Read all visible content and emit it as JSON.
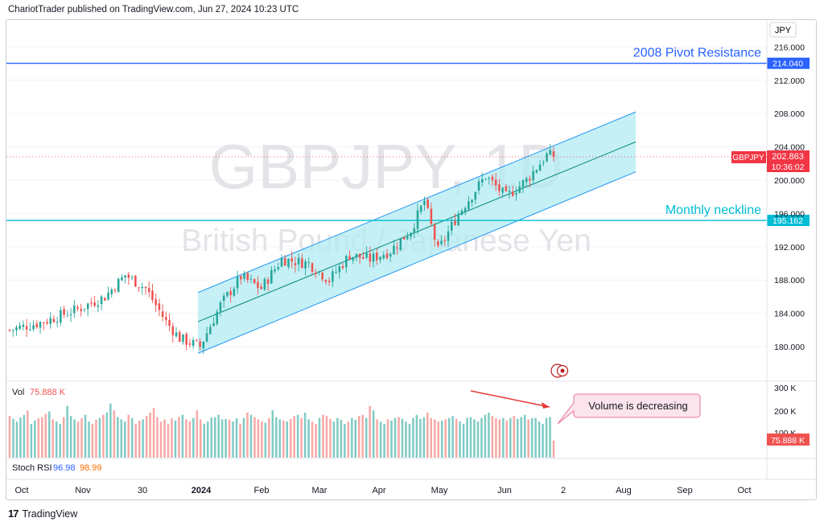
{
  "header": {
    "publish_line": "ChariotTrader published on TradingView.com, Jun 27, 2024 10:23 UTC"
  },
  "watermark": {
    "symbol_timeframe": "GBPJPY, 1D",
    "instrument_name": "British Pound / Japanese Yen"
  },
  "price_axis": {
    "currency": "JPY",
    "ticks": [
      "216.000",
      "212.000",
      "208.000",
      "204.000",
      "200.000",
      "196.000",
      "192.000",
      "188.000",
      "184.000",
      "180.000"
    ]
  },
  "time_axis": {
    "labels": [
      "Oct",
      "Nov",
      "30",
      "2024",
      "Feb",
      "Mar",
      "Apr",
      "May",
      "Jun",
      "2",
      "Aug",
      "Sep",
      "Oct"
    ]
  },
  "levels": {
    "pivot": {
      "label": "2008 Pivot Resistance",
      "value": "214.040",
      "color": "#2962ff"
    },
    "neckline": {
      "label": "Monthly neckline",
      "value": "195.162",
      "color": "#00bcd4"
    }
  },
  "last_price": {
    "symbol": "GBPJPY",
    "price": "202.863",
    "countdown": "10:36:02",
    "color": "#f23645"
  },
  "volume_pane": {
    "label": "Vol",
    "value": "75.888 K",
    "axis_ticks": [
      "300 K",
      "200 K",
      "100 K"
    ],
    "last_tag": "75.888 K",
    "annotation": "Volume is decreasing"
  },
  "stoch_rsi": {
    "label": "Stoch RSI",
    "k": "96.98",
    "d": "98.99"
  },
  "footer": {
    "brand": "TradingView"
  },
  "colors": {
    "up": "#26a69a",
    "down": "#ef5350",
    "channel_fill": "#b2ebf2",
    "channel_line": "#2196f3",
    "mid_line": "#00897b"
  },
  "chart_data": {
    "type": "candlestick",
    "title": "GBPJPY, 1D",
    "ylim": [
      177,
      218
    ],
    "y_ticks": [
      216,
      212,
      208,
      204,
      200,
      196,
      192,
      188,
      184,
      180
    ],
    "horizontal_levels": [
      {
        "name": "2008 Pivot Resistance",
        "value": 214.04
      },
      {
        "name": "Monthly neckline",
        "value": 195.162
      }
    ],
    "channel": {
      "upper": [
        [
          0,
          186.5
        ],
        [
          1,
          208.2
        ]
      ],
      "middle": [
        [
          0,
          183.0
        ],
        [
          1,
          204.6
        ]
      ],
      "lower": [
        [
          0,
          179.2
        ],
        [
          1,
          201.0
        ]
      ]
    },
    "closes_segments": [
      [
        0,
        182.0
      ],
      [
        10,
        183.0
      ],
      [
        20,
        184.5
      ],
      [
        28,
        186.0
      ],
      [
        34,
        188.6
      ],
      [
        40,
        187.0
      ],
      [
        46,
        183.0
      ],
      [
        50,
        181.0
      ],
      [
        56,
        180.0
      ],
      [
        62,
        185.0
      ],
      [
        68,
        188.4
      ],
      [
        74,
        187.0
      ],
      [
        80,
        190.5
      ],
      [
        88,
        190.0
      ],
      [
        94,
        188.0
      ],
      [
        100,
        191.0
      ],
      [
        106,
        190.5
      ],
      [
        112,
        191.5
      ],
      [
        118,
        194.0
      ],
      [
        122,
        197.5
      ],
      [
        126,
        191.5
      ],
      [
        132,
        196.0
      ],
      [
        140,
        200.5
      ],
      [
        146,
        198.0
      ],
      [
        152,
        200.0
      ],
      [
        158,
        203.0
      ],
      [
        160,
        202.9
      ]
    ],
    "volume_k": [
      185,
      172,
      160,
      178,
      190,
      210,
      150,
      165,
      175,
      180,
      195,
      205,
      170,
      160,
      150,
      180,
      230,
      185,
      170,
      160,
      175,
      190,
      160,
      150,
      168,
      176,
      190,
      200,
      240,
      210,
      180,
      170,
      160,
      190,
      176,
      150,
      165,
      170,
      185,
      200,
      220,
      180,
      160,
      170,
      150,
      175,
      165,
      180,
      190,
      170,
      160,
      176,
      210,
      170,
      150,
      160,
      178,
      180,
      190,
      170,
      172,
      168,
      160,
      175,
      150,
      176,
      200,
      190,
      180,
      170,
      160,
      155,
      176,
      210,
      180,
      170,
      165,
      160,
      172,
      185,
      190,
      176,
      200,
      170,
      160,
      150,
      176,
      190,
      185,
      172,
      160,
      176,
      168,
      150,
      160,
      176,
      168,
      185,
      190,
      176,
      230,
      210,
      170,
      160,
      150,
      170,
      165,
      176,
      180,
      172,
      160,
      150,
      176,
      190,
      172,
      180,
      200,
      176,
      170,
      160,
      165,
      170,
      176,
      185,
      172,
      160,
      150,
      176,
      180,
      170,
      160,
      176,
      190,
      200,
      185,
      175,
      170,
      176,
      165,
      176,
      185,
      172,
      180,
      190,
      170,
      175,
      176,
      160,
      150,
      176,
      180,
      75.888
    ]
  }
}
